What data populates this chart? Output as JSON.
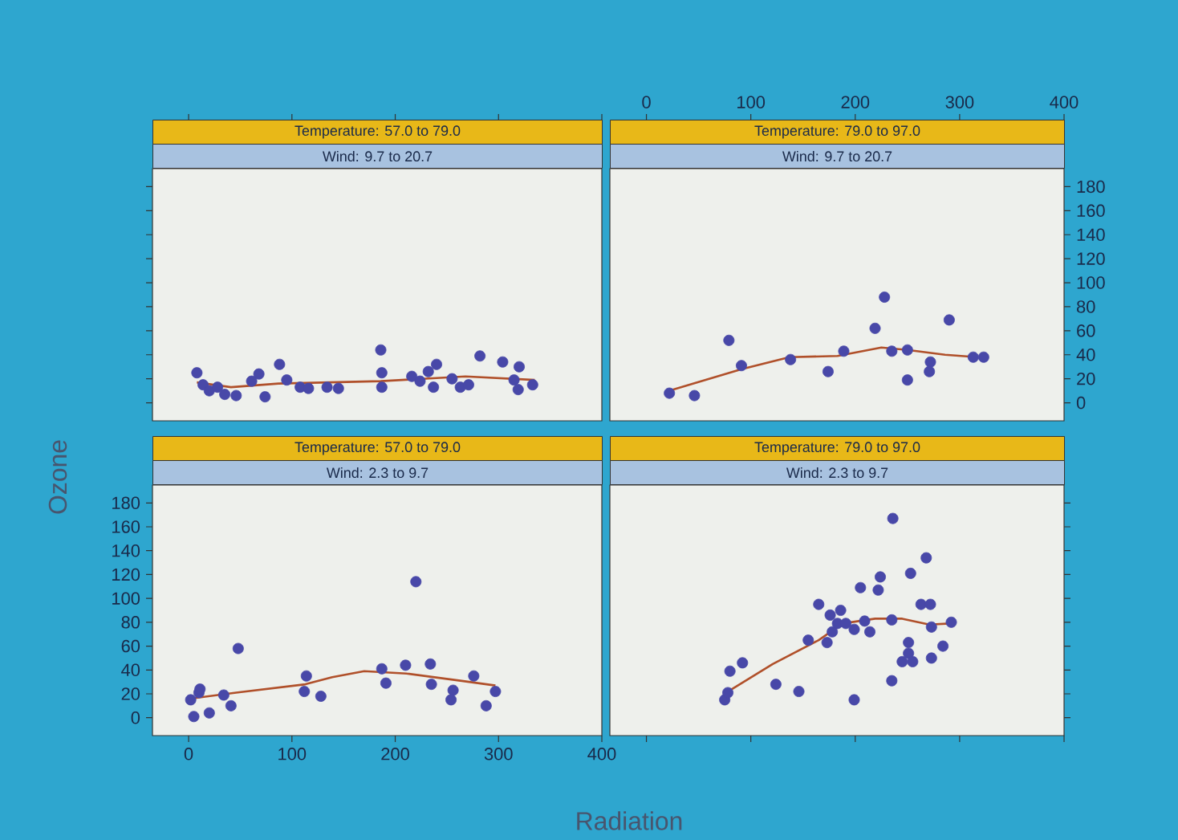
{
  "chart_data": [
    {
      "type": "scatter",
      "title": "Temperature: 57.0 to 79.0",
      "subtitle": "Wind: 9.7 to 20.7",
      "xlim": [
        -35,
        400
      ],
      "ylim": [
        -15,
        195
      ],
      "xticks": [
        0,
        100,
        200,
        300,
        400
      ],
      "yticks": [
        0,
        20,
        40,
        60,
        80,
        100,
        120,
        140,
        160,
        180
      ],
      "tick_labels": false,
      "series": [
        {
          "type": "scatter",
          "marker": "circle",
          "color": "#4848a8",
          "x": [
            8,
            14,
            20,
            28,
            35,
            46,
            61,
            68,
            74,
            88,
            95,
            108,
            116,
            134,
            145,
            186,
            187,
            187,
            216,
            224,
            232,
            240,
            237,
            255,
            263,
            271,
            282,
            304,
            315,
            320,
            319,
            333
          ],
          "values": [
            25,
            15,
            10,
            13,
            7,
            6,
            18,
            24,
            5,
            32,
            19,
            13,
            12,
            13,
            12,
            44,
            25,
            13,
            22,
            18,
            26,
            32,
            13,
            20,
            13,
            15,
            39,
            34,
            19,
            30,
            11,
            15
          ]
        },
        {
          "type": "line",
          "color": "#b0502a",
          "marker": "none",
          "x": [
            8,
            41,
            87,
            186,
            268,
            335
          ],
          "values": [
            17,
            13,
            16,
            18,
            22,
            19
          ]
        }
      ]
    },
    {
      "type": "scatter",
      "title": "Temperature: 79.0 to 97.0",
      "subtitle": "Wind: 9.7 to 20.7",
      "xlim": [
        -35,
        400
      ],
      "ylim": [
        -15,
        195
      ],
      "xticks": [
        0,
        100,
        200,
        300,
        400
      ],
      "yticks": [
        0,
        20,
        40,
        60,
        80,
        100,
        120,
        140,
        160,
        180
      ],
      "series": [
        {
          "type": "scatter",
          "marker": "circle",
          "color": "#4848a8",
          "x": [
            22,
            46,
            79,
            91,
            138,
            174,
            189,
            219,
            228,
            235,
            250,
            250,
            272,
            271,
            290,
            313,
            323
          ],
          "values": [
            8,
            6,
            52,
            31,
            36,
            26,
            43,
            62,
            88,
            43,
            44,
            19,
            34,
            26,
            69,
            38,
            38
          ]
        },
        {
          "type": "line",
          "color": "#b0502a",
          "marker": "none",
          "x": [
            22,
            91,
            137,
            183,
            225,
            250,
            286,
            317
          ],
          "values": [
            10,
            28,
            38,
            39,
            46,
            44,
            40,
            38
          ]
        }
      ]
    },
    {
      "type": "scatter",
      "title": "Temperature: 57.0 to 79.0",
      "subtitle": "Wind: 2.3 to 9.7",
      "xlabel": "Radiation",
      "ylabel": "Ozone",
      "xlim": [
        -35,
        400
      ],
      "ylim": [
        -15,
        195
      ],
      "xticks": [
        0,
        100,
        200,
        300,
        400
      ],
      "yticks": [
        0,
        20,
        40,
        60,
        80,
        100,
        120,
        140,
        160,
        180
      ],
      "series": [
        {
          "type": "scatter",
          "marker": "circle",
          "color": "#4848a8",
          "x": [
            2,
            5,
            10,
            11,
            20,
            34,
            41,
            48,
            114,
            112,
            128,
            187,
            191,
            210,
            220,
            234,
            235,
            256,
            254,
            276,
            288,
            297
          ],
          "values": [
            15,
            1,
            21,
            24,
            4,
            19,
            10,
            58,
            35,
            22,
            18,
            41,
            29,
            44,
            114,
            45,
            28,
            23,
            15,
            35,
            10,
            22
          ]
        },
        {
          "type": "line",
          "color": "#b0502a",
          "marker": "none",
          "x": [
            2,
            46,
            113,
            139,
            170,
            211,
            263,
            297
          ],
          "values": [
            16,
            21,
            28,
            34,
            39,
            37,
            31,
            27
          ]
        }
      ]
    },
    {
      "type": "scatter",
      "title": "Temperature: 79.0 to 97.0",
      "subtitle": "Wind: 2.3 to 9.7",
      "xlim": [
        -35,
        400
      ],
      "ylim": [
        -15,
        195
      ],
      "xticks": [
        0,
        100,
        200,
        300,
        400
      ],
      "yticks": [
        0,
        20,
        40,
        60,
        80,
        100,
        120,
        140,
        160,
        180
      ],
      "tick_labels": false,
      "series": [
        {
          "type": "scatter",
          "marker": "circle",
          "color": "#4848a8",
          "x": [
            75,
            78,
            80,
            92,
            124,
            146,
            155,
            165,
            173,
            176,
            186,
            178,
            183,
            191,
            199,
            199,
            205,
            209,
            214,
            222,
            224,
            235,
            235,
            236,
            245,
            251,
            251,
            253,
            255,
            263,
            268,
            272,
            273,
            273,
            284,
            292
          ],
          "values": [
            15,
            21,
            39,
            46,
            28,
            22,
            65,
            95,
            63,
            86,
            90,
            72,
            79,
            79,
            15,
            74,
            109,
            81,
            72,
            107,
            118,
            82,
            31,
            167,
            47,
            63,
            54,
            121,
            47,
            95,
            134,
            95,
            50,
            76,
            60,
            80
          ]
        },
        {
          "type": "line",
          "color": "#b0502a",
          "marker": "none",
          "x": [
            80,
            121,
            165,
            188,
            219,
            245,
            271,
            291
          ],
          "values": [
            23,
            45,
            65,
            79,
            83,
            83,
            78,
            79
          ]
        }
      ]
    }
  ]
}
